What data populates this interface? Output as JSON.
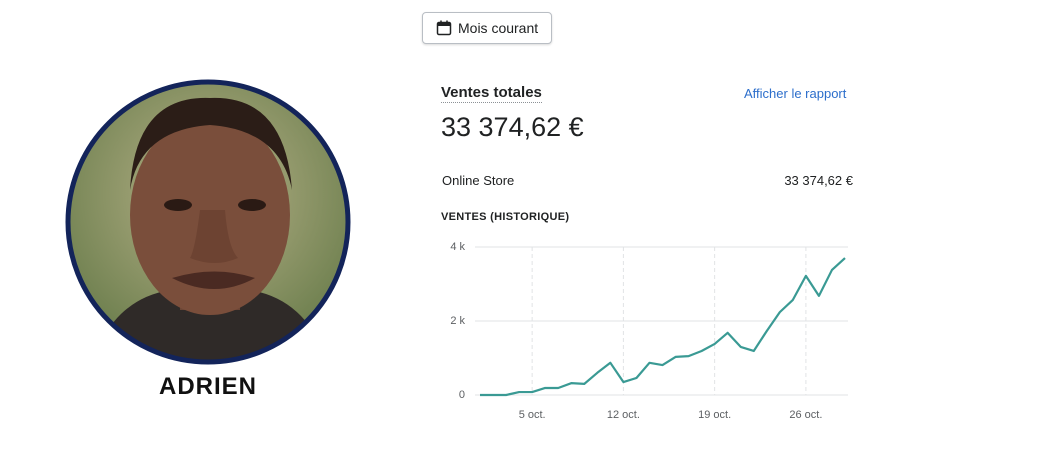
{
  "date_button": "Mois courant",
  "card": {
    "title": "Ventes totales",
    "link": "Afficher le rapport",
    "total": "33 374,62 €",
    "rows": [
      {
        "label": "Online Store",
        "value": "33 374,62 €"
      }
    ]
  },
  "chart_data": {
    "type": "line",
    "title": "VENTES (HISTORIQUE)",
    "x": [
      1,
      2,
      3,
      4,
      5,
      6,
      7,
      8,
      9,
      10,
      11,
      12,
      13,
      14,
      15,
      16,
      17,
      18,
      19,
      20,
      21,
      22,
      23,
      24,
      25,
      26,
      27,
      28,
      29
    ],
    "series": [
      {
        "color": "#3a9a94",
        "values": [
          0,
          0,
          0,
          80,
          80,
          190,
          190,
          320,
          300,
          600,
          870,
          350,
          460,
          870,
          810,
          1030,
          1050,
          1190,
          1380,
          1680,
          1300,
          1190,
          1730,
          2240,
          2570,
          3220,
          2680,
          3380,
          3700
        ]
      }
    ],
    "xlim": [
      1,
      29
    ],
    "xticks": [
      {
        "value": 5,
        "label": "5 oct."
      },
      {
        "value": 12,
        "label": "12 oct."
      },
      {
        "value": 19,
        "label": "19 oct."
      },
      {
        "value": 26,
        "label": "26 oct."
      }
    ],
    "ylim": [
      0,
      4000
    ],
    "yticks": [
      0,
      {
        "value": 2000,
        "label": "2 k"
      },
      {
        "value": 4000,
        "label": "4 k"
      }
    ],
    "grid": true
  },
  "profile": {
    "name": "ADRIEN"
  }
}
